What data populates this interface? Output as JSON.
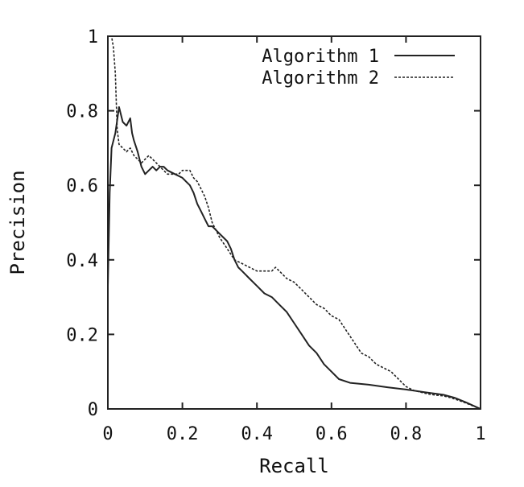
{
  "chart_data": {
    "type": "line",
    "title": "",
    "xlabel": "Recall",
    "ylabel": "Precision",
    "xlim": [
      0,
      1
    ],
    "ylim": [
      0,
      1
    ],
    "xticks": [
      0,
      0.2,
      0.4,
      0.6,
      0.8,
      1
    ],
    "yticks": [
      0,
      0.2,
      0.4,
      0.6,
      0.8,
      1
    ],
    "xtick_labels": [
      "0",
      "0.2",
      "0.4",
      "0.6",
      "0.8",
      "1"
    ],
    "ytick_labels": [
      "0",
      "0.2",
      "0.4",
      "0.6",
      "0.8",
      "1"
    ],
    "grid": false,
    "legend_position": "top-right",
    "series": [
      {
        "name": "Algorithm 1",
        "style": "solid",
        "color": "#222222",
        "points": [
          [
            0.0,
            0.33
          ],
          [
            0.005,
            0.58
          ],
          [
            0.01,
            0.7
          ],
          [
            0.02,
            0.74
          ],
          [
            0.03,
            0.81
          ],
          [
            0.035,
            0.79
          ],
          [
            0.04,
            0.77
          ],
          [
            0.05,
            0.76
          ],
          [
            0.06,
            0.78
          ],
          [
            0.065,
            0.74
          ],
          [
            0.07,
            0.72
          ],
          [
            0.08,
            0.69
          ],
          [
            0.09,
            0.65
          ],
          [
            0.1,
            0.63
          ],
          [
            0.11,
            0.64
          ],
          [
            0.12,
            0.65
          ],
          [
            0.13,
            0.64
          ],
          [
            0.14,
            0.65
          ],
          [
            0.15,
            0.65
          ],
          [
            0.16,
            0.64
          ],
          [
            0.18,
            0.63
          ],
          [
            0.2,
            0.62
          ],
          [
            0.21,
            0.61
          ],
          [
            0.22,
            0.6
          ],
          [
            0.23,
            0.58
          ],
          [
            0.24,
            0.55
          ],
          [
            0.25,
            0.53
          ],
          [
            0.26,
            0.51
          ],
          [
            0.27,
            0.49
          ],
          [
            0.28,
            0.49
          ],
          [
            0.29,
            0.48
          ],
          [
            0.3,
            0.47
          ],
          [
            0.31,
            0.46
          ],
          [
            0.32,
            0.45
          ],
          [
            0.33,
            0.43
          ],
          [
            0.34,
            0.4
          ],
          [
            0.35,
            0.38
          ],
          [
            0.36,
            0.37
          ],
          [
            0.38,
            0.35
          ],
          [
            0.4,
            0.33
          ],
          [
            0.42,
            0.31
          ],
          [
            0.44,
            0.3
          ],
          [
            0.46,
            0.28
          ],
          [
            0.48,
            0.26
          ],
          [
            0.5,
            0.23
          ],
          [
            0.52,
            0.2
          ],
          [
            0.54,
            0.17
          ],
          [
            0.56,
            0.15
          ],
          [
            0.58,
            0.12
          ],
          [
            0.6,
            0.1
          ],
          [
            0.62,
            0.08
          ],
          [
            0.65,
            0.07
          ],
          [
            0.7,
            0.065
          ],
          [
            0.75,
            0.058
          ],
          [
            0.8,
            0.052
          ],
          [
            0.85,
            0.045
          ],
          [
            0.9,
            0.038
          ],
          [
            0.93,
            0.03
          ],
          [
            0.96,
            0.018
          ],
          [
            1.0,
            0.0
          ]
        ]
      },
      {
        "name": "Algorithm 2",
        "style": "dashed",
        "color": "#222222",
        "points": [
          [
            0.005,
            1.0
          ],
          [
            0.01,
            1.0
          ],
          [
            0.015,
            0.97
          ],
          [
            0.02,
            0.9
          ],
          [
            0.025,
            0.75
          ],
          [
            0.03,
            0.71
          ],
          [
            0.04,
            0.7
          ],
          [
            0.05,
            0.69
          ],
          [
            0.06,
            0.7
          ],
          [
            0.07,
            0.68
          ],
          [
            0.08,
            0.67
          ],
          [
            0.09,
            0.66
          ],
          [
            0.1,
            0.67
          ],
          [
            0.11,
            0.68
          ],
          [
            0.12,
            0.67
          ],
          [
            0.13,
            0.66
          ],
          [
            0.14,
            0.65
          ],
          [
            0.15,
            0.64
          ],
          [
            0.16,
            0.63
          ],
          [
            0.17,
            0.63
          ],
          [
            0.18,
            0.63
          ],
          [
            0.19,
            0.63
          ],
          [
            0.2,
            0.64
          ],
          [
            0.21,
            0.64
          ],
          [
            0.22,
            0.64
          ],
          [
            0.23,
            0.62
          ],
          [
            0.24,
            0.61
          ],
          [
            0.25,
            0.59
          ],
          [
            0.26,
            0.57
          ],
          [
            0.27,
            0.54
          ],
          [
            0.28,
            0.5
          ],
          [
            0.29,
            0.48
          ],
          [
            0.3,
            0.46
          ],
          [
            0.32,
            0.43
          ],
          [
            0.34,
            0.4
          ],
          [
            0.36,
            0.39
          ],
          [
            0.38,
            0.38
          ],
          [
            0.4,
            0.37
          ],
          [
            0.42,
            0.37
          ],
          [
            0.44,
            0.37
          ],
          [
            0.45,
            0.38
          ],
          [
            0.46,
            0.37
          ],
          [
            0.47,
            0.36
          ],
          [
            0.48,
            0.35
          ],
          [
            0.5,
            0.34
          ],
          [
            0.52,
            0.32
          ],
          [
            0.54,
            0.3
          ],
          [
            0.56,
            0.28
          ],
          [
            0.58,
            0.27
          ],
          [
            0.6,
            0.25
          ],
          [
            0.62,
            0.24
          ],
          [
            0.64,
            0.21
          ],
          [
            0.66,
            0.18
          ],
          [
            0.68,
            0.15
          ],
          [
            0.7,
            0.14
          ],
          [
            0.72,
            0.12
          ],
          [
            0.74,
            0.11
          ],
          [
            0.76,
            0.1
          ],
          [
            0.78,
            0.08
          ],
          [
            0.8,
            0.06
          ],
          [
            0.82,
            0.05
          ],
          [
            0.84,
            0.045
          ],
          [
            0.86,
            0.04
          ],
          [
            0.88,
            0.037
          ],
          [
            0.9,
            0.035
          ],
          [
            0.92,
            0.03
          ],
          [
            0.95,
            0.02
          ],
          [
            0.97,
            0.012
          ],
          [
            1.0,
            0.0
          ]
        ]
      }
    ]
  }
}
